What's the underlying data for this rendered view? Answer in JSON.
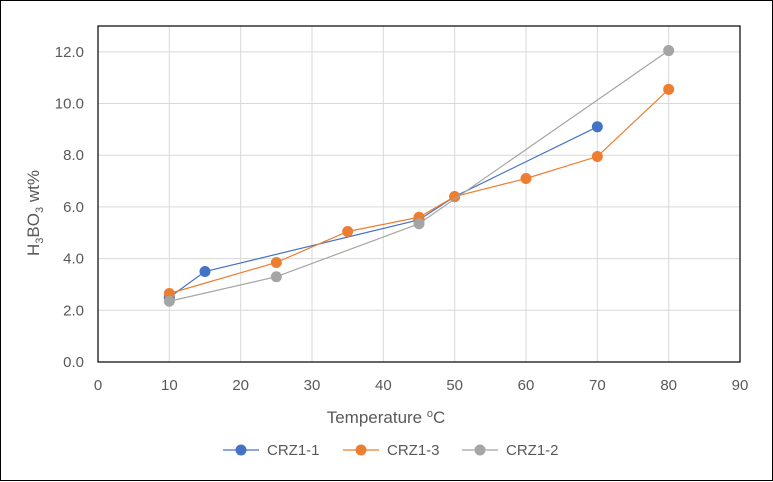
{
  "chart_data": {
    "type": "scatter",
    "title": "",
    "xlabel": {
      "prefix": "Temperature ",
      "sup": "o",
      "suffix": "C"
    },
    "ylabel": {
      "h": "H",
      "sub1": "3",
      "bo": "BO",
      "sub2": "3",
      "rest": " wt%"
    },
    "xlim": [
      0,
      90
    ],
    "ylim": [
      0,
      13
    ],
    "xticks": [
      0,
      10,
      20,
      30,
      40,
      50,
      60,
      70,
      80,
      90
    ],
    "yticks": [
      0.0,
      2.0,
      4.0,
      6.0,
      8.0,
      10.0,
      12.0
    ],
    "ytick_labels": [
      "0.0",
      "2.0",
      "4.0",
      "6.0",
      "8.0",
      "10.0",
      "12.0"
    ],
    "grid": true,
    "legend_position": "bottom",
    "series": [
      {
        "name": "CRZ1-1",
        "color": "#4472C4",
        "x": [
          10,
          15,
          45,
          50,
          70
        ],
        "y": [
          2.5,
          3.5,
          5.5,
          6.4,
          9.1
        ]
      },
      {
        "name": "CRZ1-3",
        "color": "#ED7D31",
        "x": [
          10,
          25,
          35,
          45,
          50,
          60,
          70,
          80
        ],
        "y": [
          2.65,
          3.85,
          5.05,
          5.6,
          6.4,
          7.1,
          7.95,
          10.55
        ]
      },
      {
        "name": "CRZ1-2",
        "color": "#A5A5A5",
        "x": [
          10,
          25,
          45,
          80
        ],
        "y": [
          2.35,
          3.3,
          5.35,
          12.05
        ]
      }
    ]
  }
}
